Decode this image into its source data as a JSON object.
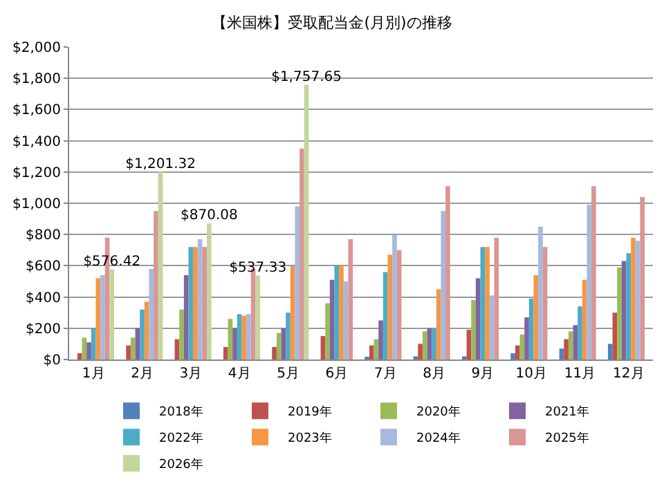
{
  "chart_data": {
    "type": "bar",
    "title": "【米国株】受取配当金(月別)の推移",
    "categories": [
      "1月",
      "2月",
      "3月",
      "4月",
      "5月",
      "6月",
      "7月",
      "8月",
      "9月",
      "10月",
      "11月",
      "12月"
    ],
    "series": [
      {
        "name": "2018年",
        "color": "#4f81bd",
        "values": [
          null,
          null,
          null,
          null,
          null,
          null,
          10,
          20,
          20,
          40,
          70,
          100
        ]
      },
      {
        "name": "2019年",
        "color": "#c0504d",
        "values": [
          40,
          90,
          130,
          80,
          80,
          150,
          90,
          100,
          190,
          90,
          130,
          300
        ]
      },
      {
        "name": "2020年",
        "color": "#9bbb59",
        "values": [
          140,
          140,
          320,
          260,
          170,
          360,
          130,
          180,
          380,
          160,
          180,
          590
        ]
      },
      {
        "name": "2021年",
        "color": "#8064a2",
        "values": [
          110,
          200,
          540,
          200,
          200,
          510,
          250,
          200,
          520,
          270,
          220,
          630
        ]
      },
      {
        "name": "2022年",
        "color": "#4bacc6",
        "values": [
          200,
          320,
          720,
          290,
          300,
          600,
          560,
          200,
          720,
          390,
          340,
          680
        ]
      },
      {
        "name": "2023年",
        "color": "#f79646",
        "values": [
          520,
          370,
          720,
          280,
          600,
          600,
          670,
          450,
          720,
          540,
          510,
          780
        ]
      },
      {
        "name": "2024年",
        "color": "#a6b9de",
        "values": [
          540,
          580,
          770,
          290,
          980,
          500,
          800,
          950,
          410,
          850,
          990,
          760
        ]
      },
      {
        "name": "2025年",
        "color": "#d99694",
        "values": [
          780,
          950,
          720,
          580,
          1350,
          770,
          700,
          1110,
          780,
          720,
          1110,
          1040
        ]
      },
      {
        "name": "2026年",
        "color": "#c3d69b",
        "values": [
          576.42,
          1201.32,
          870.08,
          537.33,
          1757.65,
          null,
          null,
          null,
          null,
          null,
          null,
          null
        ],
        "value_labels": [
          "$576.42",
          "$1,201.32",
          "$870.08",
          "$537.33",
          "$1,757.65",
          null,
          null,
          null,
          null,
          null,
          null,
          null
        ]
      }
    ],
    "ylim": [
      0,
      2000
    ],
    "yticks": [
      {
        "value": 0,
        "label": "$0"
      },
      {
        "value": 200,
        "label": "$200"
      },
      {
        "value": 400,
        "label": "$400"
      },
      {
        "value": 600,
        "label": "$600"
      },
      {
        "value": 800,
        "label": "$800"
      },
      {
        "value": 1000,
        "label": "$1,000"
      },
      {
        "value": 1200,
        "label": "$1,200"
      },
      {
        "value": 1400,
        "label": "$1,400"
      },
      {
        "value": 1600,
        "label": "$1,600"
      },
      {
        "value": 1800,
        "label": "$1,800"
      },
      {
        "value": 2000,
        "label": "$2,000"
      }
    ],
    "grid": "y",
    "legend": "bottom"
  }
}
